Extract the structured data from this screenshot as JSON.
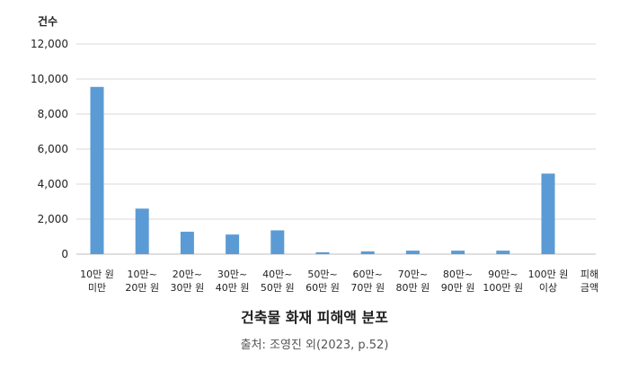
{
  "chart_data": {
    "type": "bar",
    "title": "건축물 화재 피해액 분포",
    "source": "출처: 조영진 외(2023, p.52)",
    "ylabel": "건수",
    "xlabel_lines": [
      "피해",
      "금액"
    ],
    "categories": [
      [
        "10만 원",
        "미만"
      ],
      [
        "10만~",
        "20만 원"
      ],
      [
        "20만~",
        "30만 원"
      ],
      [
        "30만~",
        "40만 원"
      ],
      [
        "40만~",
        "50만 원"
      ],
      [
        "50만~",
        "60만 원"
      ],
      [
        "60만~",
        "70만 원"
      ],
      [
        "70만~",
        "80만 원"
      ],
      [
        "80만~",
        "90만 원"
      ],
      [
        "90만~",
        "100만 원"
      ],
      [
        "100만 원",
        "이상"
      ]
    ],
    "values": [
      9550,
      2600,
      1280,
      1120,
      1360,
      110,
      160,
      200,
      200,
      200,
      4600
    ],
    "ylim": [
      0,
      12000
    ],
    "yticks": [
      "0",
      "2,000",
      "4,000",
      "6,000",
      "8,000",
      "10,000",
      "12,000"
    ],
    "grid": true,
    "bar_color": "#5b9bd5"
  }
}
